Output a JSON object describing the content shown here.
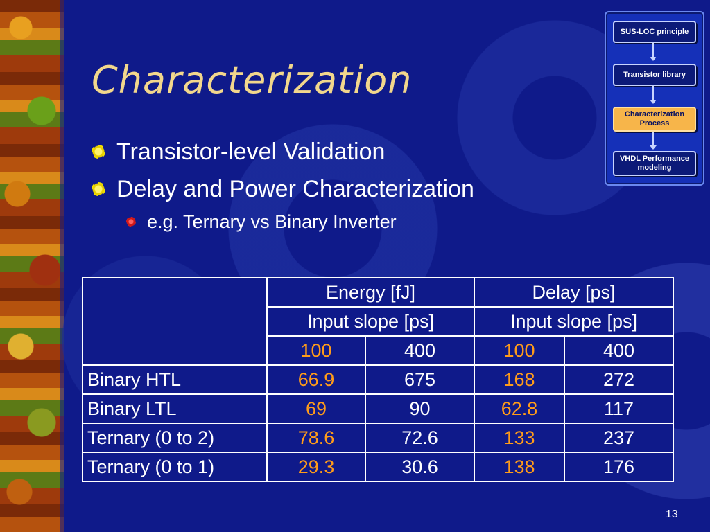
{
  "slide": {
    "title": "Characterization",
    "bullets": [
      {
        "text": "Transistor-level Validation"
      },
      {
        "text": "Delay and Power Characterization"
      }
    ],
    "sub_bullet": "e.g. Ternary vs Binary Inverter",
    "page_number": "13"
  },
  "flow": {
    "steps": [
      {
        "label": "SUS-LOC principle"
      },
      {
        "label": "Transistor library"
      },
      {
        "label": "Characterization Process"
      },
      {
        "label": "VHDL Performance modeling"
      }
    ],
    "active_color": "#f7b54a"
  },
  "table": {
    "group_headers": [
      "Energy [fJ]",
      "Delay [ps]"
    ],
    "sub_headers": [
      "Input slope [ps]",
      "Input slope [ps]"
    ],
    "slopes": [
      "100",
      "400",
      "100",
      "400"
    ],
    "rows": [
      {
        "label": "Binary HTL",
        "values": [
          "66.9",
          "675",
          "168",
          "272"
        ]
      },
      {
        "label": "Binary LTL",
        "values": [
          "69",
          "90",
          "62.8",
          "117"
        ]
      },
      {
        "label": "Ternary (0 to 2)",
        "values": [
          "78.6",
          "72.6",
          "133",
          "237"
        ]
      },
      {
        "label": "Ternary (0 to 1)",
        "values": [
          "29.3",
          "30.6",
          "138",
          "176"
        ]
      }
    ],
    "highlight_color": "#ff9c1a"
  }
}
